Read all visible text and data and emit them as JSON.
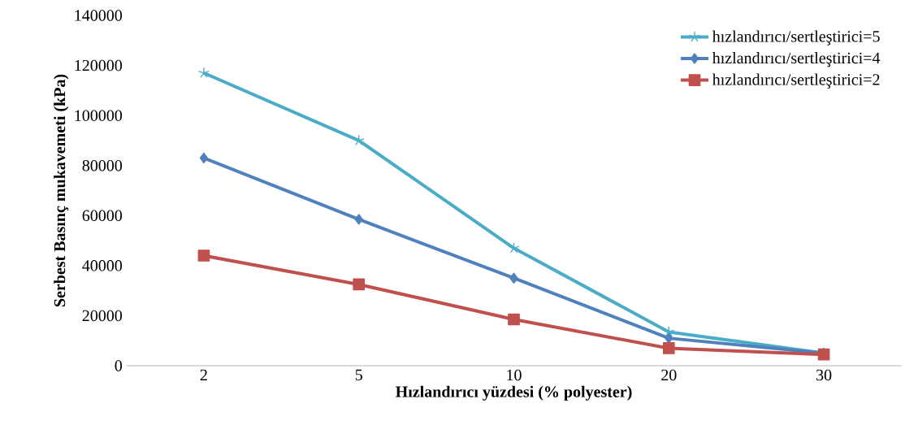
{
  "chart_data": {
    "type": "line",
    "xlabel": "Hızlandırıcı yüzdesi (% polyester)",
    "ylabel": "Serbest Basınç mukavemeti (kPa)",
    "categories": [
      "2",
      "5",
      "10",
      "20",
      "30"
    ],
    "series": [
      {
        "name": "hızlandırıcı/sertleştirici=5",
        "color": "#4bacc6",
        "marker": "cross",
        "values": [
          117000,
          90000,
          47000,
          13500,
          5000
        ]
      },
      {
        "name": "hızlandırıcı/sertleştirici=4",
        "color": "#4f81bd",
        "marker": "diamond",
        "values": [
          83000,
          58500,
          35000,
          11000,
          5000
        ]
      },
      {
        "name": "hızlandırıcı/sertleştirici=2",
        "color": "#c0504d",
        "marker": "square",
        "values": [
          44000,
          32500,
          18500,
          7000,
          4500
        ]
      }
    ],
    "ylim": [
      0,
      140000
    ],
    "yticks": [
      0,
      20000,
      40000,
      60000,
      80000,
      100000,
      120000,
      140000
    ],
    "legend": "top right",
    "line_style": "solid"
  }
}
